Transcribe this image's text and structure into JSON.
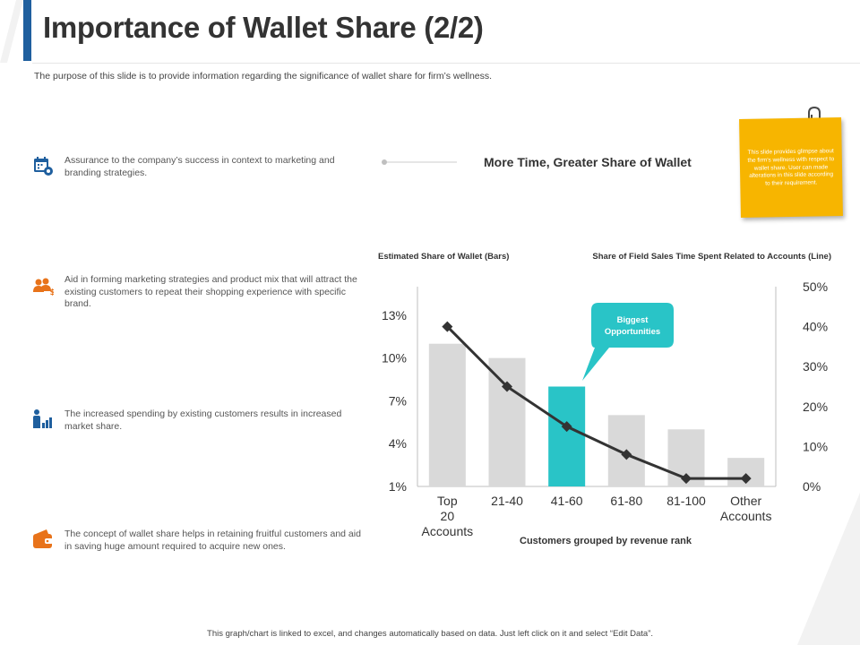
{
  "slide": {
    "title": "Importance of Wallet Share (2/2)",
    "subtitle": "The purpose of this slide is to provide information regarding the significance of wallet share for firm’s wellness.",
    "headline": "More Time, Greater Share of Wallet",
    "footer": "This graph/chart is linked to excel, and changes automatically based on data. Just left click on it and select “Edit Data”.",
    "sticky_note": "This slide provides glimpse about the firm’s wellness with respect to wallet share. User can made alterations in this slide according to their requirement.",
    "accent_color": "#1f5f9e",
    "highlight_color": "#29c4c7",
    "icon_color": "#e8731a"
  },
  "items": [
    {
      "icon": "calendar-gear-icon",
      "text": "Assurance to the company’s success in context to marketing and branding strategies."
    },
    {
      "icon": "people-dollar-icon",
      "text": "Aid in forming marketing strategies and product mix that will attract the existing customers to repeat their shopping experience with specific brand."
    },
    {
      "icon": "person-bar-chart-icon",
      "text": "The increased spending by existing customers results in increased market share."
    },
    {
      "icon": "wallet-icon",
      "text": "The concept of wallet share helps in retaining fruitful customers and aid in saving huge amount required to acquire new ones."
    }
  ],
  "chart_data": {
    "type": "bar",
    "categories": [
      "Top 20 Accounts",
      "21-40",
      "41-60",
      "61-80",
      "81-100",
      "Other Accounts"
    ],
    "series": [
      {
        "name": "Estimated Share of Wallet (Bars)",
        "type": "bar",
        "axis": "left",
        "values": [
          11,
          10,
          8,
          6,
          5,
          3
        ]
      },
      {
        "name": "Share of Field Sales Time Spent Related to Accounts (Line)",
        "type": "line",
        "axis": "right",
        "values": [
          40,
          25,
          15,
          8,
          2,
          2
        ]
      }
    ],
    "highlight_index": 2,
    "left_axis": {
      "ticks": [
        "1%",
        "4%",
        "7%",
        "10%",
        "13%"
      ],
      "tick_values": [
        1,
        4,
        7,
        10,
        13
      ],
      "ylim": [
        1,
        15
      ]
    },
    "right_axis": {
      "ticks": [
        "0%",
        "10%",
        "20%",
        "30%",
        "40%",
        "50%"
      ],
      "tick_values": [
        0,
        10,
        20,
        30,
        40,
        50
      ],
      "ylim": [
        0,
        50
      ]
    },
    "xlabel": "Customers grouped by revenue rank",
    "callout": "Biggest Opportunities",
    "colors": {
      "bar": "#d9d9d9",
      "highlight": "#29c4c7",
      "line": "#333333"
    },
    "grid": false
  }
}
